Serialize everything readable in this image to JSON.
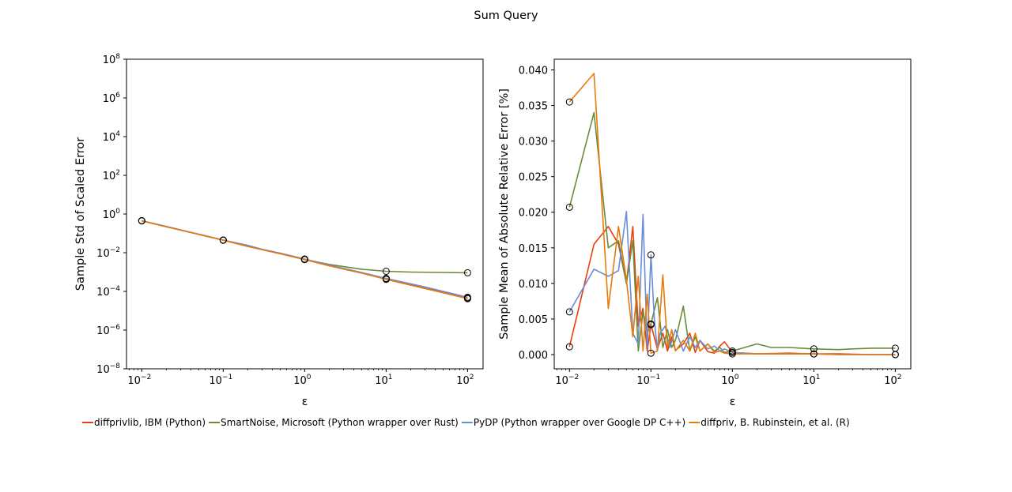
{
  "figure": {
    "title": "Sum Query"
  },
  "legend": {
    "placement": "bottom",
    "entries": [
      {
        "label": "diffprivlib, IBM (Python)",
        "color": "#e8400b"
      },
      {
        "label": "SmartNoise, Microsoft (Python wrapper over Rust)",
        "color": "#6a8c3a"
      },
      {
        "label": "PyDP (Python wrapper over Google DP C++)",
        "color": "#6a8dd8"
      },
      {
        "label": "diffpriv, B. Rubinstein, et al. (R)",
        "color": "#e87a0b"
      }
    ]
  },
  "chart_data": [
    {
      "type": "line",
      "xlabel": "ε",
      "ylabel": "Sample Std of Scaled Error",
      "xscale": "log",
      "yscale": "log",
      "xlim": [
        0.0065,
        155
      ],
      "ylim": [
        1e-08,
        100000000.0
      ],
      "xticks": [
        0.01,
        0.1,
        1,
        10,
        100
      ],
      "xtick_labels": [
        [
          "10",
          "−2"
        ],
        [
          "10",
          "−1"
        ],
        [
          "10",
          "0"
        ],
        [
          "10",
          "1"
        ],
        [
          "10",
          "2"
        ]
      ],
      "yticks": [
        1e-08,
        1e-06,
        0.0001,
        0.01,
        1,
        100.0,
        10000.0,
        1000000.0,
        100000000.0
      ],
      "ytick_labels": [
        [
          "10",
          "−8"
        ],
        [
          "10",
          "−6"
        ],
        [
          "10",
          "−4"
        ],
        [
          "10",
          "−2"
        ],
        [
          "10",
          "0"
        ],
        [
          "10",
          "2"
        ],
        [
          "10",
          "4"
        ],
        [
          "10",
          "6"
        ],
        [
          "10",
          "8"
        ]
      ],
      "grid": false,
      "series": [
        {
          "name": "diffprivlib, IBM (Python)",
          "color": "#e8400b",
          "x": [
            0.01,
            0.02,
            0.05,
            0.1,
            0.2,
            0.5,
            1,
            2,
            5,
            10,
            20,
            50,
            100
          ],
          "y": [
            0.45,
            0.22,
            0.09,
            0.045,
            0.022,
            0.009,
            0.0045,
            0.0022,
            0.0009,
            0.00045,
            0.00022,
            9e-05,
            4.5e-05
          ],
          "markers": [
            [
              0.01,
              0.45
            ],
            [
              0.1,
              0.045
            ],
            [
              1,
              0.0045
            ],
            [
              10,
              0.00045
            ],
            [
              100,
              4.5e-05
            ]
          ]
        },
        {
          "name": "SmartNoise, Microsoft (Python wrapper over Rust)",
          "color": "#6a8c3a",
          "x": [
            0.01,
            0.02,
            0.05,
            0.1,
            0.2,
            0.5,
            1,
            2,
            5,
            10,
            20,
            50,
            100
          ],
          "y": [
            0.45,
            0.22,
            0.09,
            0.045,
            0.022,
            0.009,
            0.0045,
            0.0025,
            0.0014,
            0.0011,
            0.001,
            0.00095,
            0.00092
          ],
          "markers": [
            [
              0.01,
              0.45
            ],
            [
              0.1,
              0.045
            ],
            [
              1,
              0.0045
            ],
            [
              10,
              0.0011
            ],
            [
              100,
              0.00092
            ]
          ]
        },
        {
          "name": "PyDP (Python wrapper over Google DP C++)",
          "color": "#6a8dd8",
          "x": [
            0.01,
            0.02,
            0.05,
            0.1,
            0.2,
            0.3,
            0.5,
            1,
            2,
            5,
            10,
            30,
            100
          ],
          "y": [
            0.45,
            0.23,
            0.09,
            0.045,
            0.024,
            0.015,
            0.0095,
            0.0047,
            0.0023,
            0.00095,
            0.00047,
            0.00017,
            5e-05
          ],
          "markers": [
            [
              0.01,
              0.45
            ],
            [
              0.1,
              0.045
            ],
            [
              1,
              0.0047
            ],
            [
              10,
              0.00047
            ],
            [
              100,
              5e-05
            ]
          ]
        },
        {
          "name": "diffpriv, B. Rubinstein, et al. (R)",
          "color": "#e87a0b",
          "x": [
            0.01,
            0.02,
            0.05,
            0.1,
            0.2,
            0.5,
            1,
            2,
            5,
            10,
            20,
            50,
            100
          ],
          "y": [
            0.44,
            0.22,
            0.088,
            0.044,
            0.021,
            0.0088,
            0.0044,
            0.0021,
            0.00088,
            0.00042,
            0.00021,
            8.5e-05,
            4.2e-05
          ],
          "markers": [
            [
              0.01,
              0.44
            ],
            [
              0.1,
              0.044
            ],
            [
              1,
              0.0044
            ],
            [
              10,
              0.00042
            ],
            [
              100,
              4.2e-05
            ]
          ]
        }
      ]
    },
    {
      "type": "line",
      "xlabel": "ε",
      "ylabel": "Sample Mean of Absolute Relative Error [%]",
      "xscale": "log",
      "yscale": "linear",
      "xlim": [
        0.0065,
        155
      ],
      "ylim": [
        -0.002,
        0.0415
      ],
      "xticks": [
        0.01,
        0.1,
        1,
        10,
        100
      ],
      "xtick_labels": [
        [
          "10",
          "−2"
        ],
        [
          "10",
          "−1"
        ],
        [
          "10",
          "0"
        ],
        [
          "10",
          "1"
        ],
        [
          "10",
          "2"
        ]
      ],
      "yticks": [
        0.0,
        0.005,
        0.01,
        0.015,
        0.02,
        0.025,
        0.03,
        0.035,
        0.04
      ],
      "ytick_labels": [
        "0.000",
        "0.005",
        "0.010",
        "0.015",
        "0.020",
        "0.025",
        "0.030",
        "0.035",
        "0.040"
      ],
      "grid": false,
      "series": [
        {
          "name": "diffprivlib, IBM (Python)",
          "color": "#e8400b",
          "x": [
            0.01,
            0.02,
            0.03,
            0.04,
            0.05,
            0.06,
            0.07,
            0.08,
            0.09,
            0.1,
            0.12,
            0.14,
            0.16,
            0.18,
            0.2,
            0.25,
            0.3,
            0.35,
            0.4,
            0.5,
            0.6,
            0.7,
            0.8,
            1,
            2,
            5,
            10,
            20,
            50,
            100
          ],
          "y": [
            0.0011,
            0.0155,
            0.018,
            0.0155,
            0.01,
            0.018,
            0.004,
            0.0065,
            0.0005,
            0.0042,
            0.0008,
            0.003,
            0.0005,
            0.0025,
            0.0006,
            0.0015,
            0.003,
            0.0003,
            0.002,
            0.0004,
            0.0002,
            0.0012,
            0.0018,
            0.0003,
            0.0001,
            0.0002,
            0.0001,
            0.0001,
            0.0,
            0.0
          ],
          "markers": [
            [
              0.01,
              0.0011
            ],
            [
              0.1,
              0.0042
            ],
            [
              1,
              0.0003
            ],
            [
              10,
              0.0001
            ],
            [
              100,
              0.0
            ]
          ]
        },
        {
          "name": "SmartNoise, Microsoft (Python wrapper over Rust)",
          "color": "#6a8c3a",
          "x": [
            0.01,
            0.02,
            0.03,
            0.04,
            0.05,
            0.06,
            0.07,
            0.08,
            0.09,
            0.1,
            0.12,
            0.14,
            0.16,
            0.18,
            0.2,
            0.25,
            0.3,
            0.35,
            0.4,
            0.5,
            0.6,
            0.7,
            0.8,
            1,
            2,
            3,
            5,
            7,
            10,
            20,
            30,
            50,
            70,
            100
          ],
          "y": [
            0.0207,
            0.034,
            0.015,
            0.016,
            0.01,
            0.016,
            0.0005,
            0.006,
            0.003,
            0.0043,
            0.008,
            0.001,
            0.0035,
            0.001,
            0.002,
            0.0068,
            0.0005,
            0.0025,
            0.0005,
            0.0015,
            0.0005,
            0.001,
            0.0003,
            0.0005,
            0.0015,
            0.001,
            0.001,
            0.0009,
            0.0008,
            0.0007,
            0.0008,
            0.0009,
            0.0009,
            0.0009
          ],
          "markers": [
            [
              0.01,
              0.0207
            ],
            [
              0.1,
              0.0043
            ],
            [
              1,
              0.0005
            ],
            [
              10,
              0.0008
            ],
            [
              100,
              0.0009
            ]
          ]
        },
        {
          "name": "PyDP (Python wrapper over Google DP C++)",
          "color": "#6a8dd8",
          "x": [
            0.01,
            0.02,
            0.03,
            0.04,
            0.05,
            0.06,
            0.07,
            0.08,
            0.09,
            0.1,
            0.11,
            0.12,
            0.13,
            0.15,
            0.17,
            0.2,
            0.25,
            0.3,
            0.35,
            0.4,
            0.5,
            0.6,
            0.7,
            0.8,
            1,
            2,
            5,
            10,
            20,
            50,
            100
          ],
          "y": [
            0.006,
            0.012,
            0.011,
            0.0118,
            0.0201,
            0.003,
            0.0015,
            0.0197,
            0.001,
            0.014,
            0.005,
            0.0005,
            0.003,
            0.004,
            0.001,
            0.0035,
            0.0005,
            0.0025,
            0.001,
            0.002,
            0.0008,
            0.0012,
            0.0005,
            0.0008,
            0.0003,
            0.0001,
            0.0001,
            0.0001,
            0.0,
            0.0,
            0.0
          ],
          "markers": [
            [
              0.01,
              0.006
            ],
            [
              0.1,
              0.014
            ],
            [
              1,
              0.0003
            ],
            [
              10,
              0.0001
            ],
            [
              100,
              0.0
            ]
          ]
        },
        {
          "name": "diffpriv, B. Rubinstein, et al. (R)",
          "color": "#e87a0b",
          "x": [
            0.01,
            0.02,
            0.03,
            0.04,
            0.05,
            0.06,
            0.07,
            0.08,
            0.09,
            0.1,
            0.12,
            0.14,
            0.16,
            0.18,
            0.2,
            0.25,
            0.3,
            0.35,
            0.4,
            0.5,
            0.6,
            0.7,
            0.8,
            1,
            2,
            5,
            10,
            20,
            50,
            100
          ],
          "y": [
            0.0355,
            0.0395,
            0.0065,
            0.018,
            0.0105,
            0.0025,
            0.011,
            0.0005,
            0.0085,
            0.0002,
            0.0005,
            0.0112,
            0.001,
            0.0035,
            0.0005,
            0.002,
            0.0005,
            0.003,
            0.0005,
            0.0015,
            0.0003,
            0.0005,
            0.0002,
            0.0001,
            0.0001,
            0.0001,
            0.0001,
            0.0,
            0.0,
            0.0
          ],
          "markers": [
            [
              0.01,
              0.0355
            ],
            [
              0.1,
              0.0002
            ],
            [
              1,
              0.0001
            ],
            [
              10,
              0.0001
            ],
            [
              100,
              0.0
            ]
          ]
        }
      ]
    }
  ]
}
